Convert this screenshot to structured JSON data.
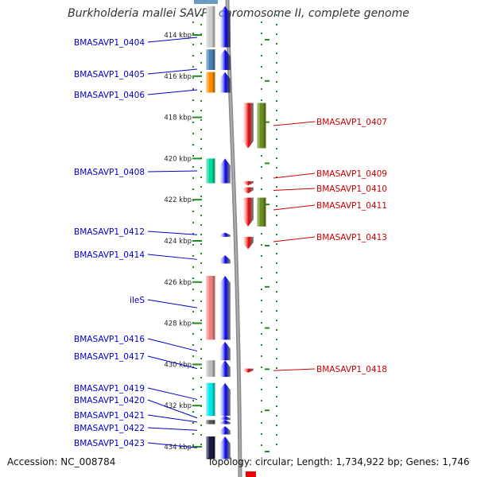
{
  "title": "Burkholderia mallei SAVP1 chromosome II, complete genome",
  "footer": {
    "accession": "Accession: NC_008784",
    "summary": "Topology: circular; Length: 1,734,922 bp; Genes: 1,746"
  },
  "colors": {
    "forward": "#0000ee",
    "reverse": "#ee0000",
    "left_label": "#0000cc",
    "right_label": "#cc0000",
    "tick": "#228b22",
    "backbone": "#8c8c8c"
  },
  "scale": {
    "unit": "kbp",
    "ticks": [
      {
        "kbp": 414,
        "label": "414 kbp"
      },
      {
        "kbp": 416,
        "label": "416 kbp"
      },
      {
        "kbp": 418,
        "label": "418 kbp"
      },
      {
        "kbp": 420,
        "label": "420 kbp"
      },
      {
        "kbp": 422,
        "label": "422 kbp"
      },
      {
        "kbp": 424,
        "label": "424 kbp"
      },
      {
        "kbp": 426,
        "label": "426 kbp"
      },
      {
        "kbp": 428,
        "label": "428 kbp"
      },
      {
        "kbp": 430,
        "label": "430 kbp"
      },
      {
        "kbp": 432,
        "label": "432 kbp"
      },
      {
        "kbp": 434,
        "label": "434 kbp"
      }
    ]
  },
  "genes": [
    {
      "name": "BMASAVP1_0404",
      "strand": "+",
      "start_kbp": 412.6,
      "end_kbp": 414.6,
      "cog_color": "#cccccc"
    },
    {
      "name": "BMASAVP1_0405",
      "strand": "+",
      "start_kbp": 414.7,
      "end_kbp": 415.7,
      "cog_color": "#4682b4"
    },
    {
      "name": "BMASAVP1_0406",
      "strand": "+",
      "start_kbp": 415.8,
      "end_kbp": 416.8,
      "cog_color": "#ff8c00"
    },
    {
      "name": "BMASAVP1_0407",
      "strand": "-",
      "start_kbp": 417.3,
      "end_kbp": 419.5,
      "cog_color": "#6b8e23"
    },
    {
      "name": "BMASAVP1_0408",
      "strand": "+",
      "start_kbp": 420.0,
      "end_kbp": 421.2,
      "cog_color": "#00d99a"
    },
    {
      "name": "BMASAVP1_0409",
      "strand": "-",
      "start_kbp": 421.1,
      "end_kbp": 421.3,
      "cog_color": ""
    },
    {
      "name": "BMASAVP1_0410",
      "strand": "-",
      "start_kbp": 421.4,
      "end_kbp": 421.7,
      "cog_color": ""
    },
    {
      "name": "BMASAVP1_0411",
      "strand": "-",
      "start_kbp": 421.9,
      "end_kbp": 423.3,
      "cog_color": "#6b8e23"
    },
    {
      "name": "BMASAVP1_0412",
      "strand": "+",
      "start_kbp": 423.6,
      "end_kbp": 423.8,
      "cog_color": ""
    },
    {
      "name": "BMASAVP1_0413",
      "strand": "-",
      "start_kbp": 423.8,
      "end_kbp": 424.4,
      "cog_color": ""
    },
    {
      "name": "BMASAVP1_0414",
      "strand": "+",
      "start_kbp": 424.7,
      "end_kbp": 425.1,
      "cog_color": ""
    },
    {
      "name": "ileS",
      "strand": "+",
      "start_kbp": 425.7,
      "end_kbp": 428.8,
      "cog_color": "#f08080"
    },
    {
      "name": "BMASAVP1_0416",
      "strand": "+",
      "start_kbp": 428.9,
      "end_kbp": 429.8,
      "cog_color": ""
    },
    {
      "name": "BMASAVP1_0417",
      "strand": "+",
      "start_kbp": 429.8,
      "end_kbp": 430.6,
      "cog_color": "#bbbbbb"
    },
    {
      "name": "BMASAVP1_0418",
      "strand": "-",
      "start_kbp": 430.2,
      "end_kbp": 430.4,
      "cog_color": ""
    },
    {
      "name": "BMASAVP1_0419",
      "strand": "+",
      "start_kbp": 430.9,
      "end_kbp": 432.5,
      "cog_color": "#00e5e5"
    },
    {
      "name": "BMASAVP1_0420",
      "strand": "+",
      "start_kbp": 432.5,
      "end_kbp": 432.7,
      "cog_color": ""
    },
    {
      "name": "BMASAVP1_0421",
      "strand": "+",
      "start_kbp": 432.7,
      "end_kbp": 432.9,
      "cog_color": "#555555"
    },
    {
      "name": "BMASAVP1_0422",
      "strand": "+",
      "start_kbp": 433.0,
      "end_kbp": 433.4,
      "cog_color": ""
    },
    {
      "name": "BMASAVP1_0423",
      "strand": "+",
      "start_kbp": 433.5,
      "end_kbp": 434.6,
      "cog_color": "#1a1a40"
    }
  ]
}
